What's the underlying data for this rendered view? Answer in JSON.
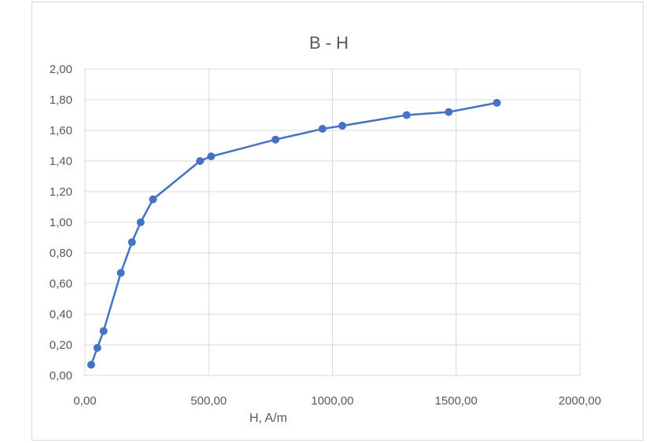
{
  "chart_data": {
    "type": "line",
    "title": "B  - H",
    "xlabel": "H, A/m",
    "ylabel": "",
    "xlim": [
      0,
      2000
    ],
    "ylim": [
      0,
      2
    ],
    "x_ticks": [
      "0,00",
      "500,00",
      "1000,00",
      "1500,00",
      "2000,00"
    ],
    "y_ticks": [
      "0,00",
      "0,20",
      "0,40",
      "0,60",
      "0,80",
      "1,00",
      "1,20",
      "1,40",
      "1,60",
      "1,80",
      "2,00"
    ],
    "grid": true,
    "legend": "none",
    "markers": true,
    "series": [
      {
        "x": [
          25,
          50,
          75,
          145,
          190,
          225,
          275,
          465,
          510,
          770,
          960,
          1040,
          1300,
          1470,
          1665
        ],
        "y": [
          0.07,
          0.18,
          0.29,
          0.67,
          0.87,
          1.0,
          1.15,
          1.4,
          1.43,
          1.54,
          1.61,
          1.63,
          1.7,
          1.72,
          1.78
        ],
        "color": "#4472c4"
      }
    ]
  },
  "colors": {
    "line": "#4472c4",
    "grid": "#d9d9d9",
    "text": "#595959",
    "frame": "#d9d9d9"
  }
}
